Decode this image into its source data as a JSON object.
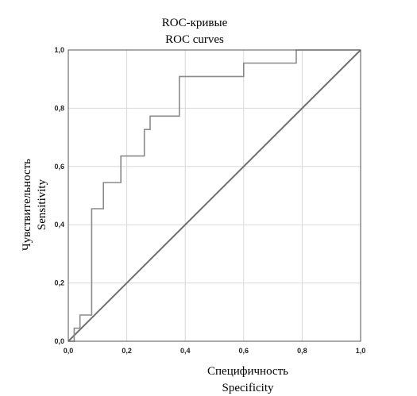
{
  "chart_data": {
    "type": "line",
    "title": [
      "ROC-кривые",
      "ROC curves"
    ],
    "xlabel": [
      "Специфичность",
      "Specificity"
    ],
    "ylabel": [
      "Чувствительность",
      "Sensitivity"
    ],
    "xlim": [
      0,
      1
    ],
    "ylim": [
      0,
      1
    ],
    "x_ticks": [
      "0,0",
      "0,2",
      "0,4",
      "0,6",
      "0,8",
      "1,0"
    ],
    "y_ticks": [
      "0,0",
      "0,2",
      "0,4",
      "0,6",
      "0,8",
      "1,0"
    ],
    "grid": true,
    "series": [
      {
        "type": "step",
        "color": "#8a8a8a",
        "points": [
          [
            0,
            0
          ],
          [
            0.02,
            0
          ],
          [
            0.02,
            0.045
          ],
          [
            0.04,
            0.045
          ],
          [
            0.04,
            0.09
          ],
          [
            0.08,
            0.09
          ],
          [
            0.08,
            0.455
          ],
          [
            0.12,
            0.455
          ],
          [
            0.12,
            0.545
          ],
          [
            0.18,
            0.545
          ],
          [
            0.18,
            0.636
          ],
          [
            0.26,
            0.636
          ],
          [
            0.26,
            0.727
          ],
          [
            0.28,
            0.727
          ],
          [
            0.28,
            0.773
          ],
          [
            0.38,
            0.773
          ],
          [
            0.38,
            0.909
          ],
          [
            0.6,
            0.909
          ],
          [
            0.6,
            0.955
          ],
          [
            0.78,
            0.955
          ],
          [
            0.78,
            1.0
          ],
          [
            1.0,
            1.0
          ]
        ]
      },
      {
        "type": "reference",
        "color": "#707070",
        "points": [
          [
            0,
            0
          ],
          [
            1,
            1
          ]
        ]
      }
    ]
  }
}
